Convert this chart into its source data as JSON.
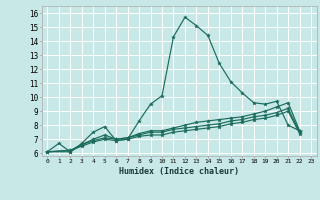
{
  "xlabel": "Humidex (Indice chaleur)",
  "bg_color": "#c8e8e8",
  "grid_color": "#ffffff",
  "line_color": "#1a6b5a",
  "xlim": [
    -0.5,
    23.5
  ],
  "ylim": [
    5.8,
    16.5
  ],
  "xticks": [
    0,
    1,
    2,
    3,
    4,
    5,
    6,
    7,
    8,
    9,
    10,
    11,
    12,
    13,
    14,
    15,
    16,
    17,
    18,
    19,
    20,
    21,
    22,
    23
  ],
  "yticks": [
    6,
    7,
    8,
    9,
    10,
    11,
    12,
    13,
    14,
    15,
    16
  ],
  "line1_x": [
    0,
    1,
    2,
    3,
    4,
    5,
    6,
    7,
    8,
    9,
    10,
    11,
    12,
    13,
    14,
    15,
    16,
    17,
    18,
    19,
    20,
    21,
    22
  ],
  "line1_y": [
    6.1,
    6.7,
    6.1,
    6.7,
    7.5,
    7.9,
    6.9,
    7.0,
    8.3,
    9.5,
    10.1,
    14.3,
    15.7,
    15.1,
    14.4,
    12.4,
    11.1,
    10.3,
    9.6,
    9.5,
    9.7,
    8.0,
    7.6
  ],
  "line2_x": [
    0,
    2,
    3,
    4,
    5,
    6,
    7,
    8,
    9,
    10,
    11,
    12,
    13,
    14,
    15,
    16,
    17,
    18,
    19,
    20,
    21,
    22
  ],
  "line2_y": [
    6.1,
    6.1,
    6.6,
    7.0,
    7.3,
    7.0,
    7.1,
    7.4,
    7.6,
    7.6,
    7.8,
    8.0,
    8.2,
    8.3,
    8.4,
    8.5,
    8.6,
    8.8,
    9.0,
    9.3,
    9.6,
    7.6
  ],
  "line3_x": [
    0,
    2,
    3,
    4,
    5,
    6,
    7,
    8,
    9,
    10,
    11,
    12,
    13,
    14,
    15,
    16,
    17,
    18,
    19,
    20,
    21,
    22
  ],
  "line3_y": [
    6.1,
    6.2,
    6.6,
    6.9,
    7.1,
    7.0,
    7.1,
    7.3,
    7.5,
    7.5,
    7.7,
    7.8,
    7.9,
    8.0,
    8.1,
    8.3,
    8.4,
    8.6,
    8.7,
    8.9,
    9.2,
    7.5
  ],
  "line4_x": [
    0,
    2,
    3,
    4,
    5,
    6,
    7,
    8,
    9,
    10,
    11,
    12,
    13,
    14,
    15,
    16,
    17,
    18,
    19,
    20,
    21,
    22
  ],
  "line4_y": [
    6.1,
    6.2,
    6.5,
    6.8,
    7.0,
    6.9,
    7.0,
    7.2,
    7.3,
    7.3,
    7.5,
    7.6,
    7.7,
    7.8,
    7.9,
    8.1,
    8.2,
    8.4,
    8.5,
    8.7,
    9.0,
    7.4
  ]
}
